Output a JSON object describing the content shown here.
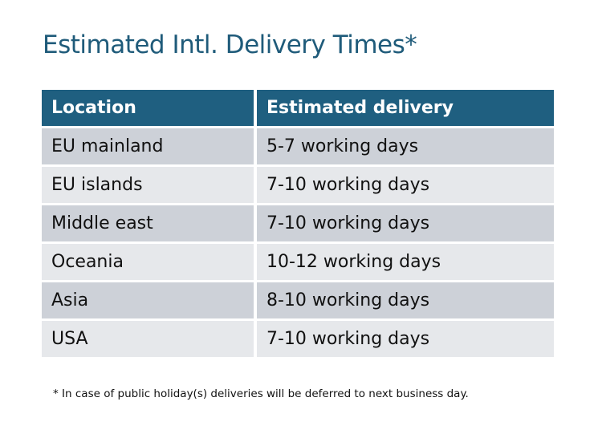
{
  "title": "Estimated Intl. Delivery Times*",
  "table": {
    "headers": [
      "Location",
      "Estimated delivery"
    ],
    "rows": [
      [
        "EU mainland",
        "5-7 working days"
      ],
      [
        "EU islands",
        "7-10 working days"
      ],
      [
        "Middle east",
        "7-10 working days"
      ],
      [
        "Oceania",
        "10-12 working days"
      ],
      [
        "Asia",
        "8-10 working days"
      ],
      [
        "USA",
        "7-10 working days"
      ]
    ]
  },
  "footnote": "* In case of public holiday(s) deliveries will be deferred to next business day.",
  "colors": {
    "header": "#1f5f80",
    "title": "#1f5b7a",
    "row_dark": "#cdd1d8",
    "row_light": "#e6e8eb"
  }
}
